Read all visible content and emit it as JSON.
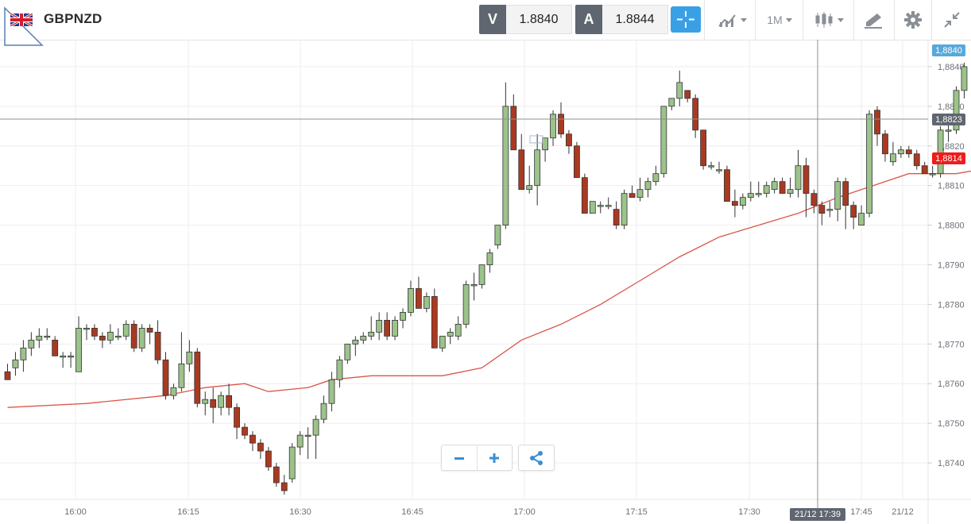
{
  "header": {
    "symbol": "GBPNZD",
    "sell_label": "V",
    "sell_value": "1.8840",
    "buy_label": "A",
    "buy_value": "1.8844",
    "timeframe": "1M",
    "icons": [
      "flag-icon",
      "crosshair-icon",
      "chart-type-icon",
      "timeframe-dropdown",
      "candles-icon",
      "drawing-icon",
      "gear-icon",
      "collapse-icon"
    ]
  },
  "chart": {
    "price_badge": "1,8840",
    "cursor_badge": "1,8823",
    "ma_badge": "1,8814",
    "cursor_time": "21/12 17:39",
    "colors": {
      "up": "#9cc38a",
      "down": "#a93a22",
      "ma": "#d9564a",
      "accent": "#3aa0e5",
      "price_badge": "#57a9db",
      "ma_badge": "#ee1c1c"
    }
  },
  "chart_data": {
    "type": "candlestick",
    "yticks": [
      "1,8840",
      "1,8830",
      "1,8820",
      "1,8810",
      "1,8800",
      "1,8790",
      "1,8780",
      "1,8770",
      "1,8760",
      "1,8750",
      "1,8740"
    ],
    "xticks": [
      "16:00",
      "16:15",
      "16:30",
      "16:45",
      "17:00",
      "17:15",
      "17:30",
      "17:45",
      "21/12"
    ],
    "ylim": [
      1.8733,
      1.8846
    ],
    "candles": [
      [
        1.8763,
        1.8765,
        1.8761,
        1.8761
      ],
      [
        1.8764,
        1.8768,
        1.8762,
        1.8766
      ],
      [
        1.8766,
        1.8771,
        1.8763,
        1.8769
      ],
      [
        1.8769,
        1.8773,
        1.8767,
        1.8771
      ],
      [
        1.8771,
        1.8774,
        1.8769,
        1.8772
      ],
      [
        1.8772,
        1.8774,
        1.8771,
        1.8772
      ],
      [
        1.8771,
        1.8772,
        1.8767,
        1.8767
      ],
      [
        1.8767,
        1.8768,
        1.8764,
        1.8767
      ],
      [
        1.8767,
        1.8768,
        1.8764,
        1.8767
      ],
      [
        1.8763,
        1.8777,
        1.8763,
        1.8774
      ],
      [
        1.8774,
        1.8775,
        1.8771,
        1.8774
      ],
      [
        1.8774,
        1.8775,
        1.8771,
        1.8772
      ],
      [
        1.8772,
        1.8773,
        1.8769,
        1.8771
      ],
      [
        1.8771,
        1.8775,
        1.877,
        1.8773
      ],
      [
        1.8772,
        1.8774,
        1.8771,
        1.8772
      ],
      [
        1.8772,
        1.8776,
        1.8771,
        1.8775
      ],
      [
        1.8775,
        1.8776,
        1.8768,
        1.8769
      ],
      [
        1.8769,
        1.8775,
        1.8768,
        1.8774
      ],
      [
        1.8774,
        1.8775,
        1.877,
        1.8773
      ],
      [
        1.8773,
        1.8776,
        1.8765,
        1.8766
      ],
      [
        1.8766,
        1.8768,
        1.8756,
        1.8757
      ],
      [
        1.8757,
        1.876,
        1.8756,
        1.8759
      ],
      [
        1.8759,
        1.8773,
        1.8758,
        1.8765
      ],
      [
        1.8765,
        1.8771,
        1.8763,
        1.8768
      ],
      [
        1.8768,
        1.8769,
        1.8754,
        1.8755
      ],
      [
        1.8755,
        1.8758,
        1.8752,
        1.8756
      ],
      [
        1.8756,
        1.8759,
        1.875,
        1.8754
      ],
      [
        1.8754,
        1.8758,
        1.8752,
        1.8757
      ],
      [
        1.8757,
        1.876,
        1.8752,
        1.8754
      ],
      [
        1.8754,
        1.8755,
        1.8746,
        1.8749
      ],
      [
        1.8749,
        1.875,
        1.8746,
        1.8747
      ],
      [
        1.8747,
        1.8748,
        1.8743,
        1.8745
      ],
      [
        1.8745,
        1.8746,
        1.8741,
        1.8743
      ],
      [
        1.8743,
        1.8744,
        1.8738,
        1.8739
      ],
      [
        1.8739,
        1.874,
        1.8734,
        1.8735
      ],
      [
        1.8735,
        1.8737,
        1.8732,
        1.8733
      ],
      [
        1.8736,
        1.8745,
        1.8735,
        1.8744
      ],
      [
        1.8744,
        1.8748,
        1.8742,
        1.8747
      ],
      [
        1.8747,
        1.8749,
        1.8741,
        1.8747
      ],
      [
        1.8747,
        1.8752,
        1.8741,
        1.8751
      ],
      [
        1.8751,
        1.8757,
        1.875,
        1.8755
      ],
      [
        1.8755,
        1.8763,
        1.8753,
        1.8761
      ],
      [
        1.8761,
        1.8767,
        1.8759,
        1.8766
      ],
      [
        1.8766,
        1.877,
        1.8765,
        1.877
      ],
      [
        1.877,
        1.8772,
        1.8767,
        1.8771
      ],
      [
        1.8771,
        1.8773,
        1.877,
        1.8772
      ],
      [
        1.8772,
        1.8777,
        1.8771,
        1.8773
      ],
      [
        1.8773,
        1.8778,
        1.8771,
        1.8776
      ],
      [
        1.8776,
        1.8778,
        1.8771,
        1.8772
      ],
      [
        1.8772,
        1.8777,
        1.8771,
        1.8776
      ],
      [
        1.8776,
        1.8779,
        1.8774,
        1.8778
      ],
      [
        1.8778,
        1.8786,
        1.8777,
        1.8784
      ],
      [
        1.8784,
        1.8787,
        1.8779,
        1.8779
      ],
      [
        1.8779,
        1.8783,
        1.8778,
        1.8782
      ],
      [
        1.8782,
        1.8784,
        1.8769,
        1.8769
      ],
      [
        1.8769,
        1.8772,
        1.8768,
        1.8772
      ],
      [
        1.8772,
        1.8774,
        1.877,
        1.8773
      ],
      [
        1.8772,
        1.8777,
        1.8771,
        1.8775
      ],
      [
        1.8775,
        1.8786,
        1.8774,
        1.8785
      ],
      [
        1.8785,
        1.8788,
        1.8781,
        1.8785
      ],
      [
        1.8785,
        1.879,
        1.8784,
        1.879
      ],
      [
        1.879,
        1.8794,
        1.8788,
        1.8793
      ],
      [
        1.8795,
        1.88,
        1.8794,
        1.88
      ],
      [
        1.88,
        1.8836,
        1.8799,
        1.883
      ],
      [
        1.883,
        1.8833,
        1.8819,
        1.8819
      ],
      [
        1.8819,
        1.8823,
        1.8809,
        1.8809
      ],
      [
        1.8809,
        1.8815,
        1.8808,
        1.881
      ],
      [
        1.881,
        1.8823,
        1.8805,
        1.8819
      ],
      [
        1.8819,
        1.8822,
        1.8816,
        1.8822
      ],
      [
        1.8822,
        1.8829,
        1.882,
        1.8828
      ],
      [
        1.8828,
        1.8831,
        1.8822,
        1.8823
      ],
      [
        1.8823,
        1.8824,
        1.8818,
        1.882
      ],
      [
        1.882,
        1.8821,
        1.8812,
        1.8812
      ],
      [
        1.8812,
        1.8813,
        1.8803,
        1.8803
      ],
      [
        1.8803,
        1.8806,
        1.8803,
        1.8806
      ],
      [
        1.8805,
        1.8806,
        1.8803,
        1.8805
      ],
      [
        1.8805,
        1.8807,
        1.8804,
        1.8805
      ],
      [
        1.8804,
        1.8806,
        1.8799,
        1.88
      ],
      [
        1.88,
        1.8809,
        1.8799,
        1.8808
      ],
      [
        1.8808,
        1.881,
        1.8807,
        1.8807
      ],
      [
        1.8807,
        1.8812,
        1.8806,
        1.8809
      ],
      [
        1.8809,
        1.8812,
        1.8807,
        1.8811
      ],
      [
        1.8811,
        1.8815,
        1.881,
        1.8813
      ],
      [
        1.8813,
        1.883,
        1.8812,
        1.883
      ],
      [
        1.883,
        1.8832,
        1.8829,
        1.8832
      ],
      [
        1.8832,
        1.8839,
        1.883,
        1.8836
      ],
      [
        1.8834,
        1.8834,
        1.8831,
        1.8832
      ],
      [
        1.8832,
        1.8833,
        1.8822,
        1.8824
      ],
      [
        1.8824,
        1.8824,
        1.8814,
        1.8815
      ],
      [
        1.8815,
        1.8816,
        1.8814,
        1.8815
      ],
      [
        1.8814,
        1.8816,
        1.8813,
        1.8814
      ],
      [
        1.8814,
        1.8815,
        1.8806,
        1.8806
      ],
      [
        1.8806,
        1.8809,
        1.8802,
        1.8805
      ],
      [
        1.8805,
        1.8808,
        1.8804,
        1.8807
      ],
      [
        1.8807,
        1.8811,
        1.8806,
        1.8808
      ],
      [
        1.8808,
        1.8811,
        1.8807,
        1.8808
      ],
      [
        1.8808,
        1.8811,
        1.8807,
        1.881
      ],
      [
        1.8809,
        1.8812,
        1.8808,
        1.8811
      ],
      [
        1.8811,
        1.8812,
        1.8808,
        1.8808
      ],
      [
        1.8808,
        1.8812,
        1.8807,
        1.8809
      ],
      [
        1.8809,
        1.8819,
        1.8807,
        1.8815
      ],
      [
        1.8815,
        1.8817,
        1.8802,
        1.8808
      ],
      [
        1.8808,
        1.8809,
        1.8803,
        1.8805
      ],
      [
        1.8805,
        1.8806,
        1.88,
        1.8803
      ],
      [
        1.8804,
        1.8806,
        1.8802,
        1.8804
      ],
      [
        1.8804,
        1.8812,
        1.8801,
        1.8811
      ],
      [
        1.8811,
        1.8812,
        1.8799,
        1.8805
      ],
      [
        1.8805,
        1.8806,
        1.8799,
        1.8802
      ],
      [
        1.88,
        1.8805,
        1.88,
        1.8803
      ],
      [
        1.8803,
        1.8829,
        1.8802,
        1.8828
      ],
      [
        1.8829,
        1.883,
        1.882,
        1.8823
      ],
      [
        1.8823,
        1.8824,
        1.8816,
        1.8818
      ],
      [
        1.8816,
        1.8821,
        1.8815,
        1.8818
      ],
      [
        1.8818,
        1.882,
        1.8817,
        1.8819
      ],
      [
        1.8819,
        1.882,
        1.8817,
        1.8818
      ],
      [
        1.8818,
        1.8819,
        1.8814,
        1.8815
      ],
      [
        1.8815,
        1.8816,
        1.8813,
        1.8813
      ],
      [
        1.8813,
        1.8815,
        1.8812,
        1.8813
      ],
      [
        1.8813,
        1.8825,
        1.8812,
        1.8824
      ],
      [
        1.8824,
        1.8826,
        1.8821,
        1.8824
      ],
      [
        1.8824,
        1.8835,
        1.8823,
        1.8834
      ],
      [
        1.8834,
        1.8841,
        1.8832,
        1.884
      ]
    ],
    "ma_points": [
      [
        0,
        1.8754
      ],
      [
        10,
        1.8755
      ],
      [
        20,
        1.8757
      ],
      [
        25,
        1.8759
      ],
      [
        30,
        1.876
      ],
      [
        33,
        1.8758
      ],
      [
        38,
        1.8759
      ],
      [
        41,
        1.8761
      ],
      [
        46,
        1.8762
      ],
      [
        50,
        1.8762
      ],
      [
        55,
        1.8762
      ],
      [
        60,
        1.8764
      ],
      [
        65,
        1.8771
      ],
      [
        70,
        1.8775
      ],
      [
        75,
        1.878
      ],
      [
        80,
        1.8786
      ],
      [
        85,
        1.8792
      ],
      [
        90,
        1.8797
      ],
      [
        95,
        1.88
      ],
      [
        100,
        1.8803
      ],
      [
        105,
        1.8807
      ],
      [
        108,
        1.8809
      ],
      [
        111,
        1.8811
      ],
      [
        114,
        1.8813
      ],
      [
        117,
        1.8813
      ],
      [
        120,
        1.8813
      ],
      [
        123,
        1.8814
      ]
    ]
  }
}
